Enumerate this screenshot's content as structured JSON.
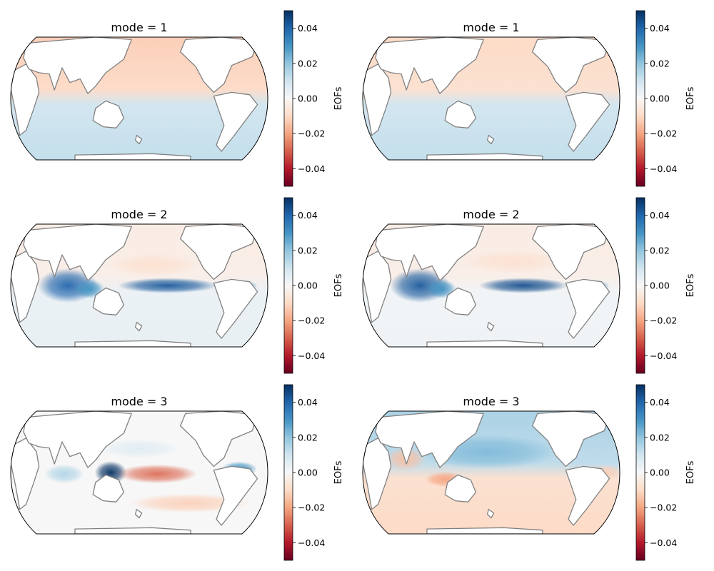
{
  "chart_data": {
    "type": "heatmap",
    "grid": "3x2",
    "colormap": {
      "name": "RdBu",
      "low": "#67001f",
      "mid": "#f7f7f7",
      "high": "#053061"
    },
    "land_color": "#ffffff",
    "coastline_color": "#808080",
    "panels": [
      {
        "title": "mode = 1",
        "colorbar": {
          "label": "EOFs",
          "range": [
            -0.05,
            0.05
          ],
          "ticks": [
            "0.04",
            "0.02",
            "0.00",
            "−0.02",
            "−0.04"
          ]
        },
        "field": {
          "north_value": -0.012,
          "south_value": 0.012,
          "features": []
        }
      },
      {
        "title": "mode = 1",
        "colorbar": {
          "label": "EOFs",
          "range": [
            -0.05,
            0.05
          ],
          "ticks": [
            "0.04",
            "0.02",
            "0.00",
            "−0.02",
            "−0.04"
          ]
        },
        "field": {
          "north_value": -0.01,
          "south_value": 0.012,
          "features": []
        }
      },
      {
        "title": "mode = 2",
        "colorbar": {
          "label": "EOFs",
          "range": [
            -0.05,
            0.05
          ],
          "ticks": [
            "0.04",
            "0.02",
            "0.00",
            "−0.02",
            "−0.04"
          ]
        },
        "field": {
          "north_value": -0.004,
          "south_value": 0.004,
          "features": [
            {
              "lon": 80,
              "lat": 0,
              "rx": 30,
              "ry": 18,
              "value": 0.04
            },
            {
              "lon": 110,
              "lat": -5,
              "rx": 15,
              "ry": 10,
              "value": 0.03
            },
            {
              "lon": 220,
              "lat": 0,
              "rx": 50,
              "ry": 8,
              "value": 0.042
            },
            {
              "lon": 325,
              "lat": 0,
              "rx": 15,
              "ry": 5,
              "value": 0.025
            },
            {
              "lon": 200,
              "lat": 30,
              "rx": 45,
              "ry": 12,
              "value": -0.008
            }
          ]
        }
      },
      {
        "title": "mode = 2",
        "colorbar": {
          "label": "EOFs",
          "range": [
            -0.05,
            0.05
          ],
          "ticks": [
            "0.04",
            "0.02",
            "0.00",
            "−0.02",
            "−0.04"
          ]
        },
        "field": {
          "north_value": -0.004,
          "south_value": 0.002,
          "features": [
            {
              "lon": 80,
              "lat": 0,
              "rx": 30,
              "ry": 18,
              "value": 0.042
            },
            {
              "lon": 110,
              "lat": -5,
              "rx": 15,
              "ry": 10,
              "value": 0.03
            },
            {
              "lon": 225,
              "lat": 0,
              "rx": 45,
              "ry": 8,
              "value": 0.044
            },
            {
              "lon": 325,
              "lat": 0,
              "rx": 15,
              "ry": 5,
              "value": 0.025
            },
            {
              "lon": 210,
              "lat": 35,
              "rx": 50,
              "ry": 12,
              "value": -0.008
            }
          ]
        }
      },
      {
        "title": "mode = 3",
        "colorbar": {
          "label": "EOFs",
          "range": [
            -0.05,
            0.05
          ],
          "ticks": [
            "0.04",
            "0.02",
            "0.00",
            "−0.02",
            "−0.04"
          ]
        },
        "field": {
          "north_value": 0.0,
          "south_value": 0.0,
          "features": [
            {
              "lon": 140,
              "lat": 0,
              "rx": 16,
              "ry": 12,
              "value": 0.05
            },
            {
              "lon": 205,
              "lat": -2,
              "rx": 40,
              "ry": 10,
              "value": -0.028
            },
            {
              "lon": 75,
              "lat": -2,
              "rx": 20,
              "ry": 10,
              "value": 0.015
            },
            {
              "lon": 320,
              "lat": 5,
              "rx": 18,
              "ry": 8,
              "value": 0.03
            },
            {
              "lon": 250,
              "lat": -45,
              "rx": 60,
              "ry": 10,
              "value": -0.012
            },
            {
              "lon": 180,
              "lat": 35,
              "rx": 40,
              "ry": 10,
              "value": 0.006
            }
          ]
        }
      },
      {
        "title": "mode = 3",
        "colorbar": {
          "label": "EOFs",
          "range": [
            -0.05,
            0.05
          ],
          "ticks": [
            "0.04",
            "0.02",
            "0.00",
            "−0.02",
            "−0.04"
          ]
        },
        "field": {
          "north_value": 0.016,
          "south_value": -0.01,
          "features": [
            {
              "lon": 175,
              "lat": 30,
              "rx": 70,
              "ry": 18,
              "value": 0.022
            },
            {
              "lon": 60,
              "lat": 20,
              "rx": 20,
              "ry": 12,
              "value": -0.015
            },
            {
              "lon": 115,
              "lat": -10,
              "rx": 20,
              "ry": 8,
              "value": -0.02
            },
            {
              "lon": 340,
              "lat": 0,
              "rx": 15,
              "ry": 8,
              "value": -0.012
            }
          ]
        }
      }
    ]
  }
}
